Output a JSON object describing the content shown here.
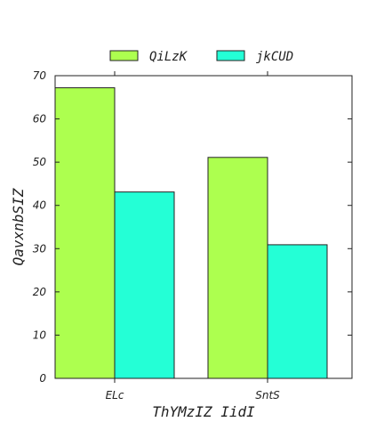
{
  "chart_data": {
    "type": "bar",
    "categories": [
      "ELc",
      "SntS"
    ],
    "series": [
      {
        "name": "QiLzK",
        "values": [
          67.2,
          51.1
        ],
        "color": "#adff4f"
      },
      {
        "name": "jkCUD",
        "values": [
          43.1,
          30.9
        ],
        "color": "#24ffd6"
      }
    ],
    "xlabel": "ThYMzIZ IidI",
    "ylabel": "QavxnbSIZ",
    "ylim": [
      0,
      70
    ],
    "yticks": [
      0,
      10,
      20,
      30,
      40,
      50,
      60,
      70
    ],
    "legend_position": "top-center",
    "grid": false
  }
}
